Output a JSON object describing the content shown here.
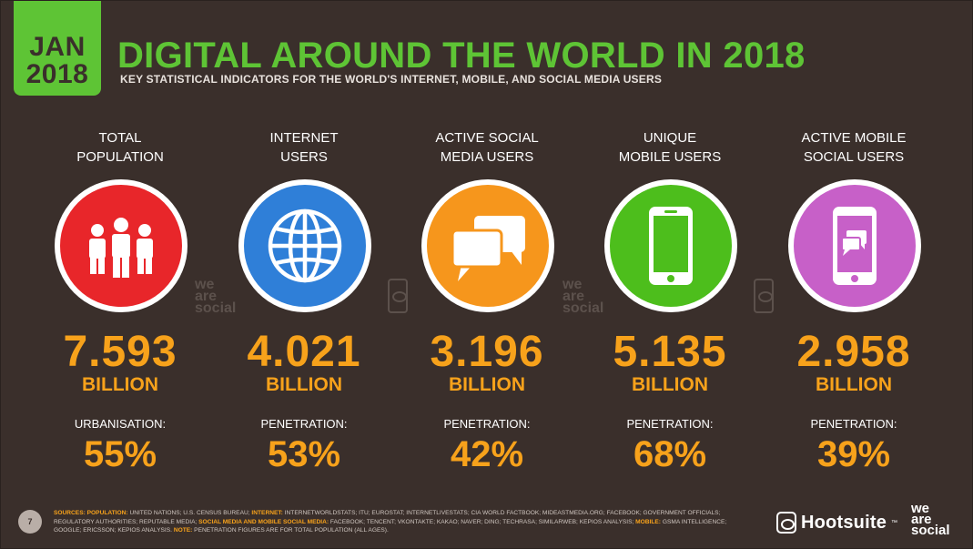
{
  "header": {
    "date_month": "JAN",
    "date_year": "2018",
    "title": "DIGITAL AROUND THE WORLD IN 2018",
    "subtitle": "KEY STATISTICAL INDICATORS FOR THE WORLD'S INTERNET, MOBILE, AND SOCIAL MEDIA USERS"
  },
  "stats": [
    {
      "label": "TOTAL\nPOPULATION",
      "icon": "people-icon",
      "color": "#e8262a",
      "value": "7.593",
      "unit": "BILLION",
      "metric_label": "URBANISATION:",
      "metric_value": "55%"
    },
    {
      "label": "INTERNET\nUSERS",
      "icon": "globe-icon",
      "color": "#2f7fd8",
      "value": "4.021",
      "unit": "BILLION",
      "metric_label": "PENETRATION:",
      "metric_value": "53%"
    },
    {
      "label": "ACTIVE SOCIAL\nMEDIA USERS",
      "icon": "speech-bubbles-icon",
      "color": "#f6961c",
      "value": "3.196",
      "unit": "BILLION",
      "metric_label": "PENETRATION:",
      "metric_value": "42%"
    },
    {
      "label": "UNIQUE\nMOBILE USERS",
      "icon": "mobile-phone-icon",
      "color": "#4dbe1c",
      "value": "5.135",
      "unit": "BILLION",
      "metric_label": "PENETRATION:",
      "metric_value": "68%"
    },
    {
      "label": "ACTIVE MOBILE\nSOCIAL USERS",
      "icon": "mobile-chat-icon",
      "color": "#c760c8",
      "value": "2.958",
      "unit": "BILLION",
      "metric_label": "PENETRATION:",
      "metric_value": "39%"
    }
  ],
  "watermarks": {
    "line1": "we",
    "line2": "are",
    "line3": "social"
  },
  "footer": {
    "page_number": "7",
    "sources_prefix": "SOURCES:",
    "population_label": "POPULATION:",
    "population_text": "UNITED NATIONS; U.S. CENSUS BUREAU;",
    "internet_label": "INTERNET:",
    "internet_text": "INTERNETWORLDSTATS; ITU; EUROSTAT; INTERNETLIVESTATS; CIA WORLD FACTBOOK; MIDEASTMEDIA.ORG; FACEBOOK; GOVERNMENT OFFICIALS; REGULATORY AUTHORITIES; REPUTABLE MEDIA;",
    "social_label": "SOCIAL MEDIA AND MOBILE SOCIAL MEDIA:",
    "social_text": "FACEBOOK; TENCENT; VKONTAKTE; KAKAO; NAVER; DING; TECHRASA; SIMILARWEB; KEPIOS ANALYSIS;",
    "mobile_label": "MOBILE:",
    "mobile_text": "GSMA INTELLIGENCE; GOOGLE; ERICSSON; KEPIOS ANALYSIS.",
    "note_label": "NOTE:",
    "note_text": "PENETRATION FIGURES ARE FOR TOTAL POPULATION (ALL AGES).",
    "hootsuite": "Hootsuite",
    "trademark": "™",
    "was_line1": "we",
    "was_line2": "are",
    "was_line3": "social"
  }
}
